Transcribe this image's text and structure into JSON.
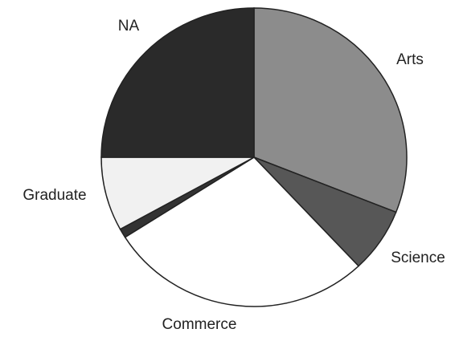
{
  "chart_data": {
    "type": "pie",
    "categories": [
      "Arts",
      "Science",
      "Commerce",
      null,
      "Graduate",
      "NA"
    ],
    "values": [
      31,
      7,
      28,
      1,
      8,
      25
    ],
    "colors": [
      "#8c8c8c",
      "#575757",
      "#ffffff",
      "#333333",
      "#f1f1f1",
      "#2a2a2a"
    ],
    "start_angle": 0,
    "direction": "clockwise"
  }
}
